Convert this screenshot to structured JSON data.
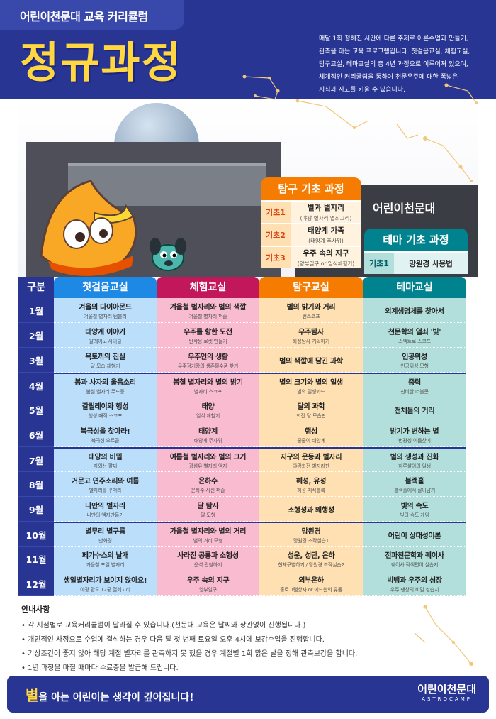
{
  "header": {
    "subtitle": "어린이천문대 교육 커리큘럼",
    "title": "정규과정",
    "desc_lines": [
      "매달 1회 정해진 시간에 다른 주제로 이론수업과 만들기,",
      "관측을 하는 교육 프로그램입니다. 첫걸음교실, 체험교실,",
      "탐구교실, 테마교실의 총 4년 과정으로 이루어져 있으며,",
      "체계적인 커리큘럼을 통하여 천문우주에 대한 폭넓은",
      "지식과 사고를 키울 수 있습니다."
    ]
  },
  "photo": {
    "building_sign": "어린이천문대"
  },
  "tamgu_basic": {
    "title": "탐구 기초 과정",
    "rows": [
      {
        "label": "기초1",
        "title": "별과 별자리",
        "sub": "(야광 별자리 열쇠고리)"
      },
      {
        "label": "기초2",
        "title": "태양계 가족",
        "sub": "(태양계 주사위)"
      },
      {
        "label": "기초3",
        "title": "우주 속의 지구",
        "sub": "(앙부일구 or 일식체험기)"
      }
    ]
  },
  "thema_basic": {
    "title": "테마 기초 과정",
    "rows": [
      {
        "label": "기초1",
        "title": "망원경 사용법",
        "sub": ""
      }
    ]
  },
  "table": {
    "headers": [
      "구분",
      "첫걸음교실",
      "체험교실",
      "탐구교실",
      "테마교실"
    ],
    "rows": [
      {
        "month": "1월",
        "c1": "겨울의 다이아몬드",
        "c1s": "겨울철 별자리 텀블러",
        "c2": "겨울철 별자리와 별의 색깔",
        "c2s": "겨울철 별자리 퍼즐",
        "c3": "별의 밝기와 거리",
        "c3s": "썬스코프",
        "c4": "외계생명체를 찾아서",
        "c4s": ""
      },
      {
        "month": "2월",
        "c1": "태양계 이야기",
        "c1s": "칼레이도 사이클",
        "c2": "우주를 향한 도전",
        "c2s": "반작용 로켓 만들기",
        "c3": "우주탐사",
        "c3s": "화성탐사 기획하기",
        "c4": "천문학의 열쇠 '빛'",
        "c4s": "스펙트로 스코프"
      },
      {
        "month": "3월",
        "c1": "옥토끼의 진실",
        "c1s": "달 모습 체험기",
        "c2": "우주인의 생활",
        "c2s": "우주정거장의 생존필수품 찾기",
        "c3": "별의 색깔에 담긴 과학",
        "c3s": "",
        "c4": "인공위성",
        "c4s": "인공위성 모형"
      },
      {
        "month": "4월",
        "c1": "봄과 사자의 울음소리",
        "c1s": "봄철 별자리 무드등",
        "c2": "봄철 별자리와 별의 밝기",
        "c2s": "별자리 스코프",
        "c3": "별의 크기와 별의 일생",
        "c3s": "별의 일생카드",
        "c4": "중력",
        "c4s": "신비한 더블콘"
      },
      {
        "month": "5월",
        "c1": "갈릴레이와 행성",
        "c1s": "행성 매직 스코프",
        "c2": "태양",
        "c2s": "일식 체험기",
        "c3": "달의 과학",
        "c3s": "회전 달 모습판",
        "c4": "천체들의 거리",
        "c4s": ""
      },
      {
        "month": "6월",
        "c1": "북극성을 찾아라!",
        "c1s": "북극성 오르골",
        "c2": "태양계",
        "c2s": "태양계 주사위",
        "c3": "행성",
        "c3s": "줄줄이 태양계",
        "c4": "밝기가 변하는 별",
        "c4s": "변광성 이름찾기"
      },
      {
        "month": "7월",
        "c1": "태양의 비밀",
        "c1s": "자외선 팔찌",
        "c2": "여름철 별자리와 별의 크기",
        "c2s": "광섬유 별자리 액자",
        "c3": "지구의 운동과 별자리",
        "c3s": "야광회전 별자리판",
        "c4": "별의 생성과 진화",
        "c4s": "하루살이의 일생"
      },
      {
        "month": "8월",
        "c1": "거문고 연주소리와 여름",
        "c1s": "별자리를 꾸며라",
        "c2": "은하수",
        "c2s": "은하수 사진 퍼즐",
        "c3": "혜성, 유성",
        "c3s": "혜성 매직블록",
        "c4": "블랙홀",
        "c4s": "블랙홀에서 살아남기"
      },
      {
        "month": "9월",
        "c1": "나만의 별자리",
        "c1s": "나만의 액자만들기",
        "c2": "달 탐사",
        "c2s": "달 모형",
        "c3": "소행성과 왜행성",
        "c3s": "",
        "c4": "빛의 속도",
        "c4s": "빛의 속도 게임"
      },
      {
        "month": "10월",
        "c1": "별무리 별구름",
        "c1s": "만화경",
        "c2": "가을철 별자리와 별의 거리",
        "c2s": "별의 거리 모형",
        "c3": "망원경",
        "c3s": "망원경 조작실습1",
        "c4": "어린이 상대성이론",
        "c4s": ""
      },
      {
        "month": "11월",
        "c1": "페가수스의 날개",
        "c1s": "가을철 포일 별자리",
        "c2": "사라진 공룡과 소행성",
        "c2s": "운석 관찰하기",
        "c3": "성운, 성단, 은하",
        "c3s": "천체구별하기 / 망원경 조작실습2",
        "c4": "전파천문학과 퀘이사",
        "c4s": "퀘이사 적색편이 실습지"
      },
      {
        "month": "12월",
        "c1": "생일별자리가 보이지 않아요!",
        "c1s": "야광 황도 12궁 열쇠고리",
        "c2": "우주 속의 지구",
        "c2s": "앙부일구",
        "c3": "외부은하",
        "c3s": "홀로그램상자 or 에드윈의 유물",
        "c4": "빅뱅과 우주의 성장",
        "c4s": "우주 팽창의 비밀 실습지"
      }
    ]
  },
  "notice": {
    "title": "안내사항",
    "items": [
      "• 각 지점별로 교육커리큘럼이 달라질 수 있습니다.(천문대 교육은 날씨와 상관없이 진행됩니다.)",
      "• 개인적인 사정으로 수업에 결석하는 경우 다음 달 첫 번째 토요일 오후 4시에 보강수업을 진행합니다.",
      "• 기상조건이 좋지 않아 해당 계절 별자리를 관측하지 못 했을 경우 계절별 1회 맑은 날을 정해 관측보강을 합니다.",
      "• 1년 과정을 마칠 때마다 수료증을 발급해 드립니다."
    ]
  },
  "footer": {
    "slogan_big": "별",
    "slogan_rest": "을 아는 어린이는 생각이 깊어집니다!",
    "logo_text": "어린이천문대",
    "logo_sub": "ASTROCAMP"
  },
  "colors": {
    "navy": "#283593",
    "yellow": "#ffd740",
    "blue": "#1e88e5",
    "pink": "#c2185b",
    "orange": "#f57c00",
    "teal": "#00838f"
  }
}
